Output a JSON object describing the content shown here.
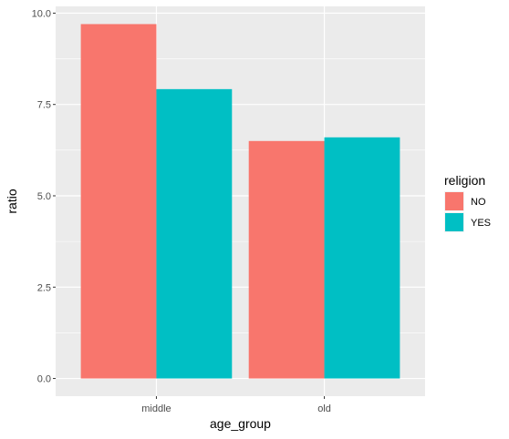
{
  "chart_data": {
    "type": "bar",
    "categories": [
      "middle",
      "old"
    ],
    "series": [
      {
        "name": "NO",
        "values": [
          9.7,
          6.5
        ]
      },
      {
        "name": "YES",
        "values": [
          7.92,
          6.6
        ]
      }
    ],
    "xlabel": "age_group",
    "ylabel": "ratio",
    "ylim": [
      -0.485,
      10.185
    ],
    "yticks": [
      0.0,
      2.5,
      5.0,
      7.5,
      10.0
    ],
    "ytick_labels": [
      "0.0",
      "2.5",
      "5.0",
      "7.5",
      "10.0"
    ],
    "legend": {
      "title": "religion",
      "placement": "right"
    },
    "grid": true,
    "panel_background": "#EBEBEB",
    "colors": {
      "NO": "#F8766D",
      "YES": "#00BFC4"
    }
  }
}
